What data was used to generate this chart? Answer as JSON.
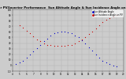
{
  "title": "Solar PV/Inverter Performance  Sun Altitude Angle & Sun Incidence Angle on PV Panels",
  "title_fontsize": 2.8,
  "bg_color": "#cccccc",
  "plot_bg_color": "#cccccc",
  "grid_color": "#aaaaaa",
  "legend_labels": [
    "Sun Altitude Angle",
    "Sun Incidence Angle on PV"
  ],
  "altitude_x": [
    4.5,
    5.0,
    5.5,
    6.0,
    6.5,
    7.0,
    7.5,
    8.0,
    8.5,
    9.0,
    9.5,
    10.0,
    10.5,
    11.0,
    11.5,
    12.0,
    12.5,
    13.0,
    13.5,
    14.0,
    14.5,
    15.0,
    15.5,
    16.0,
    16.5,
    17.0,
    17.5,
    18.0,
    18.5,
    19.0
  ],
  "altitude_y": [
    2,
    5,
    9,
    14,
    19,
    25,
    31,
    37,
    43,
    48,
    53,
    57,
    59,
    60,
    60,
    59,
    57,
    54,
    50,
    45,
    39,
    33,
    27,
    20,
    14,
    9,
    5,
    2,
    0,
    -1
  ],
  "incidence_x": [
    5.0,
    5.5,
    6.0,
    6.5,
    7.0,
    7.5,
    8.0,
    8.5,
    9.0,
    9.5,
    10.0,
    10.5,
    11.0,
    11.5,
    12.0,
    12.5,
    13.0,
    13.5,
    14.0,
    14.5,
    15.0,
    15.5,
    16.0,
    16.5,
    17.0,
    17.5,
    18.0,
    18.5,
    19.0
  ],
  "incidence_y": [
    72,
    67,
    62,
    57,
    52,
    47,
    43,
    40,
    37,
    36,
    35,
    35,
    35,
    35,
    36,
    37,
    40,
    43,
    47,
    51,
    56,
    61,
    66,
    72,
    77,
    81,
    85,
    88,
    90
  ],
  "xlim": [
    4,
    20
  ],
  "ylim": [
    -10,
    100
  ],
  "xticks": [
    4,
    5,
    6,
    7,
    8,
    9,
    10,
    11,
    12,
    13,
    14,
    15,
    16,
    17,
    18,
    19,
    20
  ],
  "yticks": [
    -10,
    0,
    10,
    20,
    30,
    40,
    50,
    60,
    70,
    80,
    90,
    100
  ],
  "altitude_color": "#0000cc",
  "incidence_color": "#cc0000",
  "marker_size": 0.8,
  "tick_fontsize": 2.0,
  "legend_fontsize": 2.0
}
